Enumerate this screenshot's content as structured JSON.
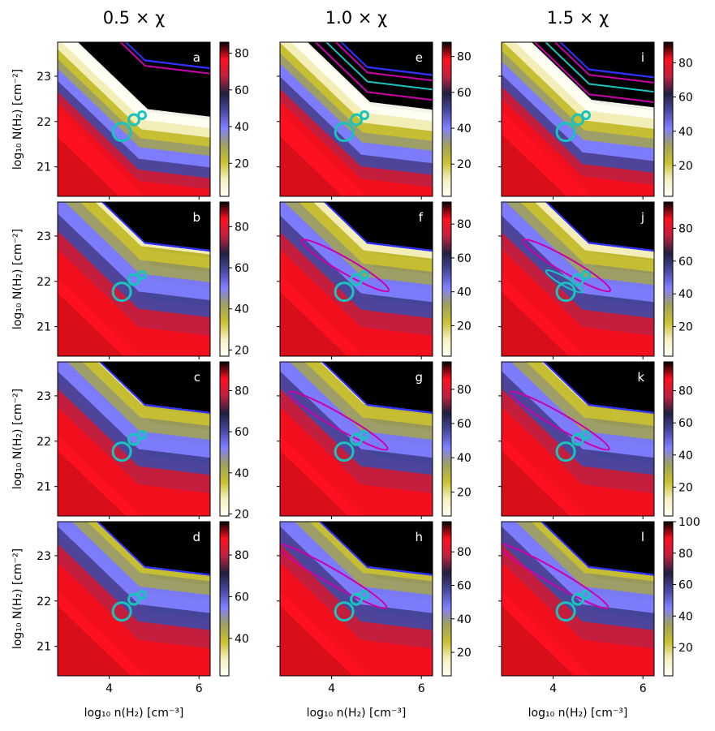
{
  "chart_data": {
    "type": "heatmap",
    "description_title": "Grid of 12 heatmap panels",
    "column_titles": [
      "0.5 × χ",
      "1.0 × χ",
      "1.5 × χ"
    ],
    "xlabel": "log₁₀ n(H₂) [cm⁻³]",
    "ylabel": "log₁₀ N(H₂) [cm⁻²]",
    "xlim": [
      2.85,
      6.25
    ],
    "ylim": [
      20.35,
      23.75
    ],
    "xticks": [
      4,
      6
    ],
    "yticks": [
      21,
      22,
      23
    ],
    "colormap": [
      "#fffff5",
      "#f5f0c0",
      "#c8c030",
      "#a0a060",
      "#8080ff",
      "#4848a0",
      "#202040",
      "#c02040",
      "#ff1020",
      "#000000"
    ],
    "circles": [
      {
        "x": 4.28,
        "y": 21.77
      },
      {
        "x": 4.55,
        "y": 22.04
      },
      {
        "x": 4.73,
        "y": 22.14
      }
    ],
    "panels": [
      {
        "label": "a",
        "column": 0,
        "row": 0,
        "cbar_ticks": [
          20,
          40,
          60,
          80
        ],
        "cbar_range": [
          2,
          86
        ],
        "band_offset": 0.9,
        "band_width": 0.55,
        "upper_offset": 1.5,
        "contours_magenta": 1,
        "contours_cyan": 0
      },
      {
        "label": "b",
        "column": 0,
        "row": 1,
        "cbar_ticks": [
          20,
          40,
          60,
          80
        ],
        "cbar_range": [
          17,
          92
        ],
        "band_offset": 0.25,
        "band_width": 0.9,
        "upper_offset": 1.0,
        "contours_magenta": 0,
        "contours_cyan": 0
      },
      {
        "label": "c",
        "column": 0,
        "row": 2,
        "cbar_ticks": [
          20,
          40,
          60,
          80
        ],
        "cbar_range": [
          19,
          94
        ],
        "band_offset": 0.2,
        "band_width": 0.9,
        "upper_offset": 0.95,
        "contours_magenta": 0,
        "contours_cyan": 0
      },
      {
        "label": "d",
        "column": 0,
        "row": 3,
        "cbar_ticks": [
          40,
          60,
          80
        ],
        "cbar_range": [
          22,
          96
        ],
        "band_offset": 0.1,
        "band_width": 0.9,
        "upper_offset": 0.9,
        "contours_magenta": 0,
        "contours_cyan": 0
      },
      {
        "label": "e",
        "column": 1,
        "row": 0,
        "cbar_ticks": [
          20,
          40,
          60,
          80
        ],
        "cbar_range": [
          2,
          88
        ],
        "band_offset": 0.8,
        "band_width": 0.6,
        "upper_offset": 1.35,
        "contours_magenta": 2,
        "contours_cyan": 1
      },
      {
        "label": "f",
        "column": 1,
        "row": 1,
        "cbar_ticks": [
          20,
          40,
          60,
          80
        ],
        "cbar_range": [
          2,
          93
        ],
        "band_offset": 0.3,
        "band_width": 0.85,
        "upper_offset": 1.0,
        "contours_magenta": 1,
        "contours_cyan": 0
      },
      {
        "label": "g",
        "column": 1,
        "row": 2,
        "cbar_ticks": [
          20,
          40,
          60,
          80
        ],
        "cbar_range": [
          6,
          96
        ],
        "band_offset": 0.2,
        "band_width": 0.9,
        "upper_offset": 0.95,
        "contours_magenta": 1,
        "contours_cyan": 0
      },
      {
        "label": "h",
        "column": 1,
        "row": 3,
        "cbar_ticks": [
          20,
          40,
          60,
          80
        ],
        "cbar_range": [
          6,
          98
        ],
        "band_offset": 0.1,
        "band_width": 0.9,
        "upper_offset": 0.9,
        "contours_magenta": 1,
        "contours_cyan": 0
      },
      {
        "label": "i",
        "column": 2,
        "row": 0,
        "cbar_ticks": [
          20,
          40,
          60,
          80
        ],
        "cbar_range": [
          2,
          92
        ],
        "band_offset": 0.75,
        "band_width": 0.6,
        "upper_offset": 1.3,
        "contours_magenta": 2,
        "contours_cyan": 1
      },
      {
        "label": "j",
        "column": 2,
        "row": 1,
        "cbar_ticks": [
          20,
          40,
          60,
          80
        ],
        "cbar_range": [
          2,
          96
        ],
        "band_offset": 0.3,
        "band_width": 0.85,
        "upper_offset": 1.0,
        "contours_magenta": 1,
        "contours_cyan": 1
      },
      {
        "label": "k",
        "column": 2,
        "row": 2,
        "cbar_ticks": [
          20,
          40,
          60,
          80
        ],
        "cbar_range": [
          2,
          98
        ],
        "band_offset": 0.2,
        "band_width": 0.9,
        "upper_offset": 0.95,
        "contours_magenta": 1,
        "contours_cyan": 0
      },
      {
        "label": "l",
        "column": 2,
        "row": 3,
        "cbar_ticks": [
          20,
          40,
          60,
          80,
          100
        ],
        "cbar_range": [
          2,
          100
        ],
        "band_offset": 0.1,
        "band_width": 0.9,
        "upper_offset": 0.9,
        "contours_magenta": 1,
        "contours_cyan": 0
      }
    ]
  }
}
